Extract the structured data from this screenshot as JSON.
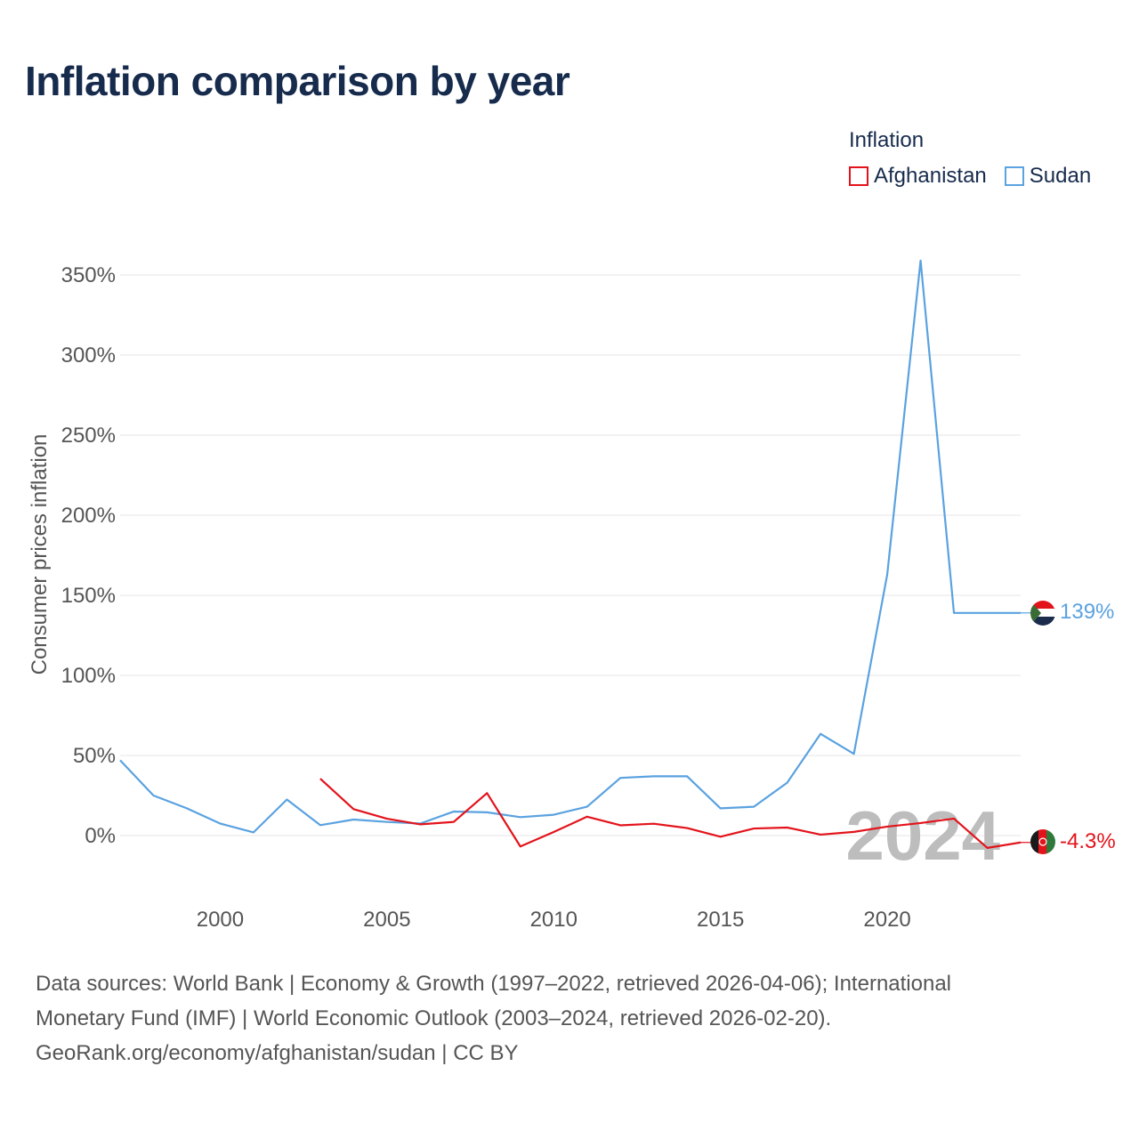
{
  "title": "Inflation comparison by year",
  "legend": {
    "title": "Inflation",
    "items": [
      {
        "label": "Afghanistan",
        "color": "#e3131b"
      },
      {
        "label": "Sudan",
        "color": "#5aa2e0"
      }
    ]
  },
  "watermark_year": "2024",
  "sources": {
    "line1": "Data sources: World Bank | Economy & Growth (1997–2022, retrieved 2026-04-06); International",
    "line2": "Monetary Fund (IMF) | World Economic Outlook (2003–2024, retrieved 2026-02-20).",
    "line3": "GeoRank.org/economy/afghanistan/sudan | CC BY"
  },
  "chart_data": {
    "type": "line",
    "title": "Inflation comparison by year",
    "xlabel": "",
    "ylabel": "Consumer prices inflation",
    "xlim": [
      1997,
      2024
    ],
    "ylim": [
      -30,
      380
    ],
    "x_ticks": [
      2000,
      2005,
      2010,
      2015,
      2020
    ],
    "y_ticks": [
      0,
      50,
      100,
      150,
      200,
      250,
      300,
      350
    ],
    "y_tick_labels": [
      "0%",
      "50%",
      "100%",
      "150%",
      "200%",
      "250%",
      "300%",
      "350%"
    ],
    "grid": true,
    "series": [
      {
        "name": "Sudan",
        "color": "#5aa2e0",
        "x": [
          1997,
          1998,
          1999,
          2000,
          2001,
          2002,
          2003,
          2004,
          2005,
          2006,
          2007,
          2008,
          2009,
          2010,
          2011,
          2012,
          2013,
          2014,
          2015,
          2016,
          2017,
          2018,
          2019,
          2020,
          2021,
          2022,
          2023,
          2024
        ],
        "values": [
          47,
          25,
          17,
          7.5,
          2,
          22.5,
          6.5,
          10,
          8.5,
          7.5,
          15,
          14.5,
          11.5,
          13,
          18,
          36,
          37,
          37,
          17,
          18,
          33,
          63.5,
          51,
          163,
          359,
          139,
          139,
          139
        ],
        "end_label": "139%"
      },
      {
        "name": "Afghanistan",
        "color": "#e3131b",
        "x": [
          2003,
          2004,
          2005,
          2006,
          2007,
          2008,
          2009,
          2010,
          2011,
          2012,
          2013,
          2014,
          2015,
          2016,
          2017,
          2018,
          2019,
          2020,
          2021,
          2022,
          2023,
          2024
        ],
        "values": [
          35.5,
          16.5,
          10.5,
          7,
          8.5,
          26.5,
          -6.8,
          2.2,
          11.8,
          6.4,
          7.4,
          4.7,
          -0.7,
          4.4,
          5,
          0.6,
          2.3,
          5.6,
          7.8,
          10.6,
          -7.7,
          -4.3
        ],
        "end_label": "-4.3%"
      }
    ]
  }
}
